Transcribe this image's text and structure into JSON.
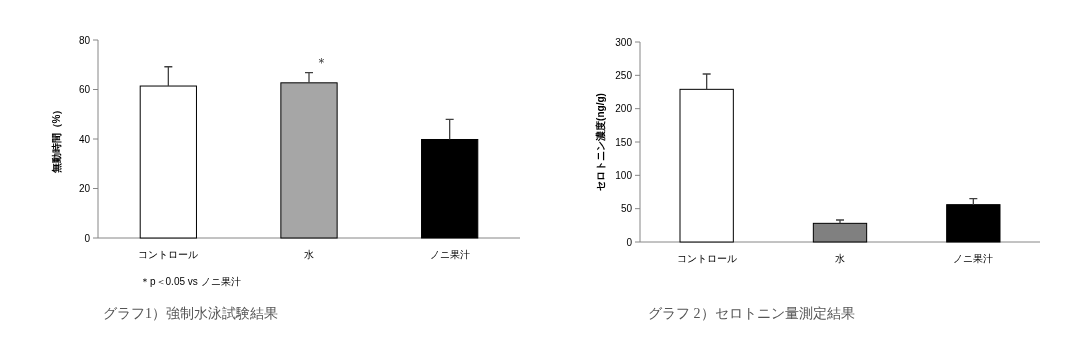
{
  "chart_data": [
    {
      "type": "bar",
      "title": "グラフ1）強制水泳試験結果",
      "ylabel": "無動時間（%）",
      "categories": [
        "コントロール",
        "水",
        "ノニ果汁"
      ],
      "values": [
        61.4,
        62.7,
        39.8
      ],
      "colors": [
        "#ffffff",
        "#a6a6a6",
        "#000000"
      ],
      "errors": [
        [
          61.4,
          69.2
        ],
        [
          62.7,
          66.8
        ],
        [
          39.8,
          47.9
        ]
      ],
      "ylim": [
        0,
        80
      ],
      "yticks": [
        0,
        20,
        40,
        60,
        80
      ],
      "annotations": [
        "＊",
        "＊p＜0.05  vs  ノニ果汁"
      ]
    },
    {
      "type": "bar",
      "title": "グラフ 2）セロトニン量測定結果",
      "ylabel": "セロトニン濃度(ng/g)",
      "categories": [
        "コントロール",
        "水",
        "ノニ果汁"
      ],
      "values": [
        229,
        28,
        56
      ],
      "colors": [
        "#ffffff",
        "#808080",
        "#000000"
      ],
      "errors": [
        [
          229,
          252
        ],
        [
          28,
          33
        ],
        [
          56,
          65
        ]
      ],
      "ylim": [
        0,
        300
      ],
      "yticks": [
        0,
        50,
        100,
        150,
        200,
        250,
        300
      ]
    }
  ]
}
